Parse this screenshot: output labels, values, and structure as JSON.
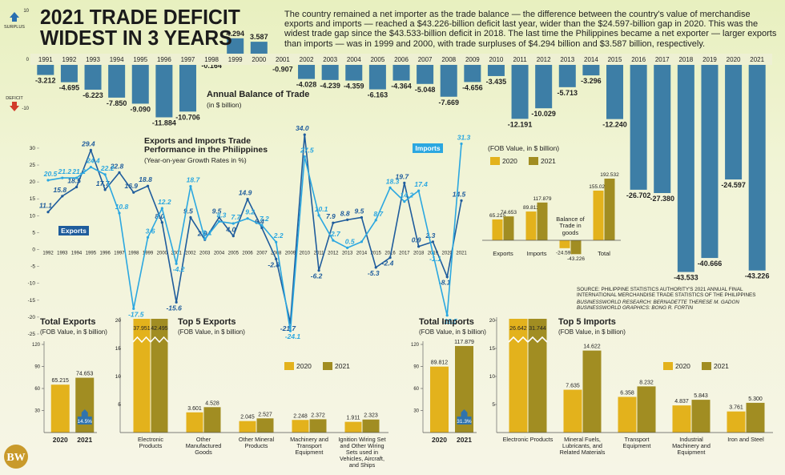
{
  "title": "2021 TRADE DEFICIT WIDEST IN 3 YEARS",
  "description": "The country remained a net importer as the trade balance — the difference between the country's value of merchandise exports and imports — reached a $43.226-billion deficit last year, wider than the $24.597-billion gap in 2020. This was the widest trade gap since the $43.533-billion deficit in 2018. The last time the Philippines became a net exporter — larger exports than imports — was in 1999 and 2000, with trade surpluses of $4.294 billion and $3.587 billion, respectively.",
  "source": "SOURCE: PHILIPPINE STATISTICS AUTHORITY'S 2021 ANNUAL FINAL INTERNATIONAL MERCHANDISE TRADE STATISTICS OF THE PHILIPPINES",
  "research": "BUSINESSWORLD RESEARCH: BERNADETTE THERESE M. GADON",
  "graphics": "BUSINESSWORLD GRAPHICS: BONG R. FORTIN",
  "logo": "BW",
  "chart_data": [
    {
      "type": "bar",
      "title": "Annual Balance of Trade",
      "subtitle": "(in $ billion)",
      "surplus_label": "SURPLUS",
      "deficit_label": "DEFICIT",
      "categories": [
        "1991",
        "1992",
        "1993",
        "1994",
        "1995",
        "1996",
        "1997",
        "1998",
        "1999",
        "2000",
        "2001",
        "2002",
        "2003",
        "2004",
        "2005",
        "2006",
        "2007",
        "2008",
        "2009",
        "2010",
        "2011",
        "2012",
        "2013",
        "2014",
        "2015",
        "2016",
        "2017",
        "2018",
        "2019",
        "2020",
        "2021"
      ],
      "values": [
        -3.212,
        -4.695,
        -6.223,
        -7.85,
        -9.09,
        -11.884,
        -10.706,
        -0.164,
        4.294,
        3.587,
        -0.907,
        -4.028,
        -4.239,
        -4.359,
        -6.163,
        -4.364,
        -5.048,
        -7.669,
        -4.656,
        -3.435,
        -12.191,
        -10.029,
        -5.713,
        -3.296,
        -12.24,
        -26.702,
        -27.38,
        -43.533,
        -40.666,
        -24.597,
        -43.226
      ],
      "value_labels": [
        "-3.212",
        "-4.695",
        "-6.223",
        "-7.850",
        "-9.090",
        "-11.884",
        "-10.706",
        "-0.164",
        "4.294",
        "3.587",
        "-0.907",
        "-4.028",
        "-4.239",
        "-4.359",
        "-6.163",
        "-4.364",
        "-5.048",
        "-7.669",
        "-4.656",
        "-3.435",
        "-12.191",
        "-10.029",
        "-5.713",
        "-3.296",
        "-12.240",
        "-26.702",
        "-27.380",
        "-43.533",
        "-40.666",
        "-24.597",
        "-43.226"
      ],
      "color": "#3d7ea6",
      "ylim": [
        -45,
        10
      ],
      "yticks": [
        10,
        0,
        -10
      ]
    },
    {
      "type": "line",
      "title": "Exports and Imports Trade Performance in the Philippines",
      "subtitle": "(Year-on-year Growth Rates in %)",
      "categories": [
        "1992",
        "1993",
        "1994",
        "1995",
        "1996",
        "1997",
        "1998",
        "1999",
        "2000",
        "2001",
        "2002",
        "2003",
        "2004",
        "2005",
        "2006",
        "2007",
        "2008",
        "2009",
        "2010",
        "2011",
        "2012",
        "2013",
        "2014",
        "2015",
        "2016",
        "2017",
        "2018",
        "2019",
        "2020",
        "2021"
      ],
      "series": [
        {
          "name": "Exports",
          "color": "#1f5c9c",
          "values": [
            11.1,
            15.8,
            18.5,
            29.4,
            17.7,
            22.8,
            16.9,
            18.8,
            8,
            -15.6,
            9.5,
            2.9,
            9.5,
            4,
            14.9,
            6.4,
            -2.8,
            -21.7,
            34,
            -6.2,
            7.9,
            8.8,
            9.5,
            -5.3,
            -2.4,
            19.7,
            0.9,
            2.3,
            -8.1,
            14.5
          ],
          "value_labels": [
            "11.1",
            "15.8",
            "18.5",
            "29.4",
            "17.7",
            "22.8",
            "16.9",
            "18.8",
            "8.0",
            "-15.6",
            "9.5",
            "2.9",
            "9.5",
            "4.0",
            "14.9",
            "6.4",
            "-2.8",
            "-21.7",
            "34.0",
            "-6.2",
            "7.9",
            "8.8",
            "9.5",
            "-5.3",
            "-2.4",
            "19.7",
            "0.9",
            "2.3",
            "-8.1",
            "14.5"
          ]
        },
        {
          "name": "Imports",
          "color": "#2ba7e0",
          "values": [
            20.5,
            21.2,
            21.2,
            24.4,
            22.2,
            10.8,
            -17.5,
            3.6,
            12.2,
            -4.2,
            18.7,
            3.1,
            8.3,
            7.7,
            9.2,
            7.2,
            2.2,
            -24.1,
            27.5,
            10.1,
            2.7,
            0.5,
            2.3,
            8.7,
            18.3,
            14.2,
            17.4,
            -1.1,
            -19.5,
            31.3
          ],
          "value_labels": [
            "20.5",
            "21.2",
            "21.2",
            "24.4",
            "22.2",
            "10.8",
            "-17.5",
            "3.6",
            "12.2",
            "-4.2",
            "18.7",
            "3.1",
            "8.3",
            "7.7",
            "9.2",
            "7.2",
            "2.2",
            "-24.1",
            "27.5",
            "10.1",
            "2.7",
            "0.5",
            null,
            "8.7",
            "18.3",
            "14.2",
            "17.4",
            "-1.1",
            "-19.5",
            "31.3"
          ]
        }
      ],
      "ylim": [
        -26,
        33
      ],
      "yticks": [
        30,
        25,
        20,
        15,
        10,
        5,
        0,
        -5,
        -10,
        -15,
        -20,
        -25
      ]
    },
    {
      "type": "bar",
      "subtitle": "(FOB Value, in $ billion)",
      "categories": [
        "Exports",
        "Imports",
        "Balance of Trade in goods",
        "Total"
      ],
      "series": [
        {
          "name": "2020",
          "color": "#e3b21c",
          "values": [
            65.215,
            89.812,
            -24.597,
            155.026
          ],
          "value_labels": [
            "65.215",
            "89.812",
            "-24.597",
            "155.026"
          ]
        },
        {
          "name": "2021",
          "color": "#a18d22",
          "values": [
            74.653,
            117.879,
            -43.226,
            192.532
          ],
          "value_labels": [
            "74.653",
            "117.879",
            "-43.226",
            "192.532"
          ]
        }
      ],
      "ylim": [
        -50,
        200
      ]
    },
    {
      "type": "bar",
      "title": "Total Exports",
      "subtitle": "(FOB Value, in $ billion)",
      "categories": [
        "2020",
        "2021"
      ],
      "values": [
        65.215,
        74.653
      ],
      "value_labels": [
        "65.215",
        "74.653"
      ],
      "colors": [
        "#e3b21c",
        "#a18d22"
      ],
      "growth_label": "14.5%",
      "ylim": [
        0,
        120
      ],
      "yticks": [
        30,
        60,
        90,
        120
      ]
    },
    {
      "type": "bar",
      "title": "Top 5 Exports",
      "subtitle": "(FOB Value, in $ billion)",
      "categories": [
        "Electronic Products",
        "Other Manufactured Goods",
        "Other Mineral Products",
        "Machinery and Transport Equipment",
        "Ignition Wiring Set and Other Wiring Sets used in Vehicles, Aircraft, and Ships"
      ],
      "series": [
        {
          "name": "2020",
          "color": "#e3b21c",
          "values": [
            37.951,
            3.601,
            2.045,
            2.248,
            1.911
          ],
          "value_labels": [
            "37.951",
            "3.601",
            "2.045",
            "2.248",
            "1.911"
          ]
        },
        {
          "name": "2021",
          "color": "#a18d22",
          "values": [
            42.495,
            4.528,
            2.527,
            2.372,
            2.323
          ],
          "value_labels": [
            "42.495",
            "4.528",
            "2.527",
            "2.372",
            "2.323"
          ]
        }
      ],
      "ylim": [
        0,
        20
      ],
      "yticks": [
        5,
        10,
        15,
        20
      ]
    },
    {
      "type": "bar",
      "title": "Total Imports",
      "subtitle": "(FOB Value, in $ billion)",
      "categories": [
        "2020",
        "2021"
      ],
      "values": [
        89.812,
        117.879
      ],
      "value_labels": [
        "89.812",
        "117.879"
      ],
      "colors": [
        "#e3b21c",
        "#a18d22"
      ],
      "growth_label": "31.3%",
      "ylim": [
        0,
        120
      ],
      "yticks": [
        30,
        60,
        90,
        120
      ]
    },
    {
      "type": "bar",
      "title": "Top 5 Imports",
      "subtitle": "(FOB Value, in $ billion)",
      "categories": [
        "Electronic Products",
        "Mineral Fuels, Lubricants, and Related Materials",
        "Transport Equipment",
        "Industrial Machinery and Equipment",
        "Iron and Steel"
      ],
      "series": [
        {
          "name": "2020",
          "color": "#e3b21c",
          "values": [
            26.642,
            7.635,
            6.358,
            4.837,
            3.761
          ],
          "value_labels": [
            "26.642",
            "7.635",
            "6.358",
            "4.837",
            "3.761"
          ]
        },
        {
          "name": "2021",
          "color": "#a18d22",
          "values": [
            31.744,
            14.622,
            8.232,
            5.843,
            5.3
          ],
          "value_labels": [
            "31.744",
            "14.622",
            "8.232",
            "5.843",
            "5.300"
          ]
        }
      ],
      "ylim": [
        0,
        20
      ],
      "yticks": [
        5,
        10,
        15,
        20
      ]
    }
  ]
}
